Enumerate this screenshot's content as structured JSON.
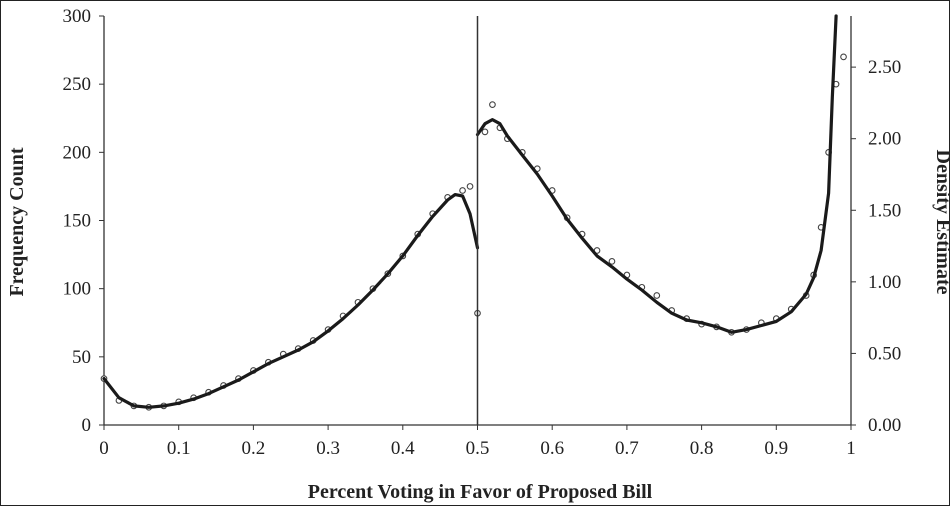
{
  "chart_data": {
    "type": "scatter",
    "title": "",
    "xlabel": "Percent Voting in Favor of Proposed Bill",
    "ylabel": "Frequency Count",
    "y2label": "Density Estimate",
    "xlim": [
      0,
      1
    ],
    "ylim": [
      0,
      300
    ],
    "y2lim": [
      0,
      2.8571
    ],
    "x_ticks": [
      "0",
      "0.1",
      "0.2",
      "0.3",
      "0.4",
      "0.5",
      "0.6",
      "0.7",
      "0.8",
      "0.9",
      "1"
    ],
    "y_ticks": [
      "0",
      "50",
      "100",
      "150",
      "200",
      "250",
      "300"
    ],
    "y2_ticks": [
      "0.00",
      "0.50",
      "1.00",
      "1.50",
      "2.00",
      "2.50"
    ],
    "grid": false,
    "reference_line_x": 0.5,
    "series": [
      {
        "kind": "points",
        "axis": "left",
        "x": [
          0.0,
          0.02,
          0.04,
          0.06,
          0.08,
          0.1,
          0.12,
          0.14,
          0.16,
          0.18,
          0.2,
          0.22,
          0.24,
          0.26,
          0.28,
          0.3,
          0.32,
          0.34,
          0.36,
          0.38,
          0.4,
          0.42,
          0.44,
          0.46,
          0.48,
          0.49,
          0.5,
          0.51,
          0.52,
          0.53,
          0.54,
          0.56,
          0.58,
          0.6,
          0.62,
          0.64,
          0.66,
          0.68,
          0.7,
          0.72,
          0.74,
          0.76,
          0.78,
          0.8,
          0.82,
          0.84,
          0.86,
          0.88,
          0.9,
          0.92,
          0.94,
          0.95,
          0.96,
          0.97,
          0.98,
          0.99
        ],
        "values": [
          34,
          18,
          14,
          13,
          14,
          17,
          20,
          24,
          29,
          34,
          40,
          46,
          52,
          56,
          62,
          70,
          80,
          90,
          100,
          111,
          124,
          140,
          155,
          167,
          172,
          175,
          82,
          215,
          235,
          218,
          210,
          200,
          188,
          172,
          152,
          140,
          128,
          120,
          110,
          101,
          95,
          84,
          78,
          74,
          72,
          68,
          70,
          75,
          78,
          85,
          95,
          110,
          145,
          200,
          250,
          270
        ]
      },
      {
        "kind": "density",
        "axis": "left",
        "x": [
          0.0,
          0.02,
          0.04,
          0.06,
          0.08,
          0.1,
          0.12,
          0.14,
          0.16,
          0.18,
          0.2,
          0.22,
          0.24,
          0.26,
          0.28,
          0.3,
          0.32,
          0.34,
          0.36,
          0.38,
          0.4,
          0.42,
          0.44,
          0.46,
          0.47,
          0.48,
          0.49,
          0.5
        ],
        "values": [
          34,
          20,
          14,
          13,
          14,
          16,
          19,
          23,
          28,
          33,
          39,
          45,
          50,
          55,
          61,
          69,
          78,
          88,
          99,
          111,
          124,
          139,
          153,
          165,
          169,
          168,
          155,
          130
        ]
      },
      {
        "kind": "density",
        "axis": "left",
        "x": [
          0.5,
          0.51,
          0.52,
          0.53,
          0.54,
          0.56,
          0.58,
          0.6,
          0.62,
          0.64,
          0.66,
          0.68,
          0.7,
          0.72,
          0.74,
          0.76,
          0.78,
          0.8,
          0.82,
          0.84,
          0.86,
          0.88,
          0.9,
          0.92,
          0.94,
          0.95,
          0.96,
          0.97,
          0.975,
          0.98
        ],
        "values": [
          213,
          221,
          224,
          221,
          212,
          198,
          184,
          168,
          151,
          137,
          124,
          116,
          107,
          99,
          90,
          82,
          77,
          75,
          72,
          68,
          70,
          73,
          76,
          83,
          96,
          108,
          128,
          170,
          240,
          300
        ]
      }
    ]
  }
}
